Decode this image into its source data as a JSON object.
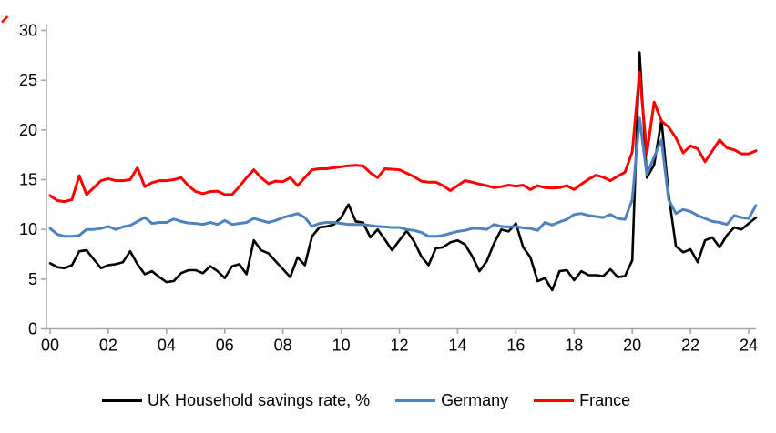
{
  "chart_data": {
    "type": "line",
    "title": "",
    "xlabel": "",
    "ylabel": "",
    "x_unit": "year (quarterly data)",
    "x_range": [
      "2000Q1",
      "2024Q2"
    ],
    "ylim": [
      0,
      30
    ],
    "y_ticks": [
      0,
      5,
      10,
      15,
      20,
      25,
      30
    ],
    "x_tick_labels": [
      "00",
      "02",
      "04",
      "06",
      "08",
      "10",
      "12",
      "14",
      "16",
      "18",
      "20",
      "22",
      "24"
    ],
    "grid": false,
    "legend_position": "bottom",
    "axis_color": "#a6a6a6",
    "text_color": "#000000",
    "background_color": "#ffffff",
    "series": [
      {
        "name": "UK Household savings rate, %",
        "color": "#000000",
        "line_width": 2.6,
        "values": [
          6.6,
          6.2,
          6.1,
          6.4,
          7.8,
          7.9,
          7.0,
          6.1,
          6.4,
          6.5,
          6.7,
          7.8,
          6.5,
          5.5,
          5.8,
          5.2,
          4.7,
          4.8,
          5.6,
          5.9,
          5.9,
          5.6,
          6.3,
          5.8,
          5.1,
          6.3,
          6.5,
          5.5,
          8.9,
          7.9,
          7.6,
          6.8,
          6.0,
          5.2,
          7.2,
          6.4,
          9.3,
          10.2,
          10.3,
          10.5,
          11.2,
          12.5,
          10.8,
          10.7,
          9.2,
          10.0,
          9.0,
          7.9,
          8.9,
          9.85,
          8.8,
          7.3,
          6.4,
          8.1,
          8.2,
          8.7,
          8.9,
          8.5,
          7.3,
          5.8,
          6.8,
          8.6,
          10.0,
          9.8,
          10.6,
          8.2,
          7.2,
          4.8,
          5.1,
          3.9,
          5.8,
          5.9,
          4.9,
          5.8,
          5.4,
          5.4,
          5.3,
          6.0,
          5.2,
          5.3,
          6.9,
          27.8,
          15.2,
          16.5,
          21.0,
          13.5,
          8.3,
          7.7,
          8.0,
          6.7,
          8.9,
          9.2,
          8.2,
          9.4,
          10.2,
          10.0,
          10.6,
          11.2
        ]
      },
      {
        "name": "Germany",
        "color": "#4f81bd",
        "line_width": 3,
        "values": [
          10.1,
          9.5,
          9.3,
          9.3,
          9.4,
          10.0,
          10.0,
          10.1,
          10.3,
          10.0,
          10.25,
          10.4,
          10.8,
          11.2,
          10.6,
          10.7,
          10.7,
          11.05,
          10.8,
          10.65,
          10.6,
          10.5,
          10.7,
          10.5,
          10.9,
          10.5,
          10.6,
          10.7,
          11.1,
          10.9,
          10.7,
          10.9,
          11.2,
          11.4,
          11.6,
          11.2,
          10.3,
          10.6,
          10.7,
          10.7,
          10.6,
          10.5,
          10.5,
          10.5,
          10.4,
          10.3,
          10.25,
          10.2,
          10.2,
          10.0,
          9.9,
          9.7,
          9.3,
          9.3,
          9.4,
          9.6,
          9.8,
          9.9,
          10.1,
          10.1,
          10.0,
          10.5,
          10.3,
          10.25,
          10.3,
          10.15,
          10.1,
          9.9,
          10.7,
          10.45,
          10.75,
          11.0,
          11.5,
          11.6,
          11.4,
          11.3,
          11.2,
          11.5,
          11.1,
          11.0,
          13.0,
          21.2,
          15.5,
          17.3,
          19.0,
          13.0,
          11.6,
          12.0,
          11.8,
          11.4,
          11.1,
          10.8,
          10.7,
          10.5,
          11.4,
          11.2,
          11.1,
          12.4
        ]
      },
      {
        "name": "France",
        "color": "#ff0000",
        "line_width": 3,
        "values": [
          13.4,
          12.9,
          12.8,
          13.0,
          15.4,
          13.5,
          14.2,
          14.9,
          15.1,
          14.9,
          14.9,
          15.0,
          16.2,
          14.3,
          14.7,
          14.9,
          14.9,
          15.0,
          15.2,
          14.4,
          13.8,
          13.6,
          13.8,
          13.85,
          13.5,
          13.5,
          14.3,
          15.2,
          16.0,
          15.2,
          14.6,
          14.85,
          14.8,
          15.2,
          14.4,
          15.2,
          16.0,
          16.1,
          16.1,
          16.2,
          16.3,
          16.4,
          16.45,
          16.4,
          15.7,
          15.2,
          16.1,
          16.05,
          16.0,
          15.65,
          15.3,
          14.85,
          14.75,
          14.75,
          14.4,
          13.9,
          14.4,
          14.9,
          14.75,
          14.55,
          14.4,
          14.2,
          14.3,
          14.45,
          14.35,
          14.45,
          14.0,
          14.4,
          14.2,
          14.15,
          14.2,
          14.4,
          14.0,
          14.55,
          15.05,
          15.45,
          15.25,
          14.9,
          15.35,
          15.75,
          17.8,
          25.8,
          17.6,
          22.8,
          20.9,
          20.3,
          19.2,
          17.7,
          18.4,
          18.1,
          16.8,
          17.9,
          19.0,
          18.2,
          18.0,
          17.6,
          17.6,
          17.9
        ]
      }
    ]
  },
  "legend": {
    "items": [
      {
        "label": "UK Household savings rate, %"
      },
      {
        "label": "Germany"
      },
      {
        "label": "France"
      }
    ]
  },
  "decorations": {
    "top_left_mark_color": "#ff0000"
  }
}
